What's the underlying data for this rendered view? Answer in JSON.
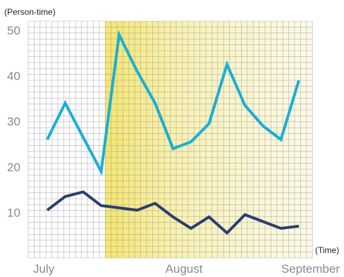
{
  "chart_data": {
    "type": "line",
    "y_unit_label": "(Person-time)",
    "x_unit_label": "(Time)",
    "ylim": [
      0,
      52
    ],
    "y_ticks": [
      "10",
      "20",
      "30",
      "40",
      "50"
    ],
    "x_tick_labels": [
      "July",
      "August",
      "September"
    ],
    "grid": true,
    "highlight_region": {
      "from_index": 3.3,
      "to_index": 15,
      "color": "#f5ea8c"
    },
    "colors": {
      "series_1": "#1aaed6",
      "series_2": "#2d3e6e",
      "grid": "#9a9aa8",
      "background": "#ffffff"
    },
    "x": [
      0,
      1,
      2,
      3,
      4,
      5,
      6,
      7,
      8,
      9,
      10,
      11,
      12,
      13,
      14
    ],
    "series": [
      {
        "values": [
          26,
          34,
          26.5,
          19,
          49,
          41,
          34,
          24,
          25.5,
          29.5,
          42.5,
          33.5,
          29,
          26,
          39
        ]
      },
      {
        "values": [
          10.5,
          13.5,
          14.5,
          11.5,
          11,
          10.5,
          12,
          9,
          6.5,
          9,
          5.5,
          9.5,
          8,
          6.5,
          7
        ]
      }
    ]
  }
}
